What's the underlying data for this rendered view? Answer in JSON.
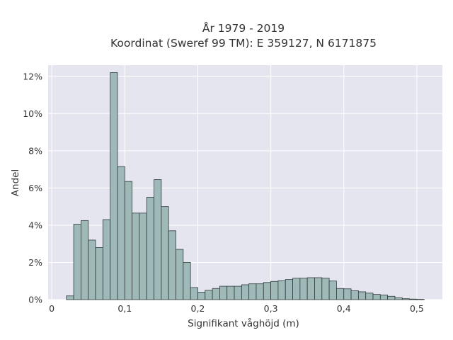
{
  "chart_data": {
    "type": "bar",
    "title_lines": [
      "År 1979 - 2019",
      "Koordinat (Sweref 99 TM): E 359127, N 6171875"
    ],
    "xlabel": "Signifikant våghöjd (m)",
    "ylabel": "Andel",
    "xlim": [
      -0.005,
      0.535
    ],
    "ylim": [
      0,
      12.6
    ],
    "xticks": [
      0,
      0.1,
      0.2,
      0.3,
      0.4,
      0.5
    ],
    "xtick_labels": [
      "0",
      "0,1",
      "0,2",
      "0,3",
      "0,4",
      "0,5"
    ],
    "yticks": [
      0,
      2,
      4,
      6,
      8,
      10,
      12
    ],
    "ytick_labels": [
      "0%",
      "2%",
      "4%",
      "6%",
      "8%",
      "10%",
      "12%"
    ],
    "grid": true,
    "bin_width": 0.01,
    "bin_starts": [
      0.02,
      0.03,
      0.04,
      0.05,
      0.06,
      0.07,
      0.08,
      0.09,
      0.1,
      0.11,
      0.12,
      0.13,
      0.14,
      0.15,
      0.16,
      0.17,
      0.18,
      0.19,
      0.2,
      0.21,
      0.22,
      0.23,
      0.24,
      0.25,
      0.26,
      0.27,
      0.28,
      0.29,
      0.3,
      0.31,
      0.32,
      0.33,
      0.34,
      0.35,
      0.36,
      0.37,
      0.38,
      0.39,
      0.4,
      0.41,
      0.42,
      0.43,
      0.44,
      0.45,
      0.46,
      0.47,
      0.48,
      0.49,
      0.5
    ],
    "values": [
      0.2,
      4.05,
      4.25,
      3.2,
      2.8,
      4.3,
      12.2,
      7.15,
      6.35,
      4.65,
      4.65,
      5.5,
      6.45,
      5.0,
      3.7,
      2.7,
      2.0,
      0.65,
      0.4,
      0.5,
      0.6,
      0.72,
      0.72,
      0.72,
      0.8,
      0.85,
      0.85,
      0.92,
      0.98,
      1.02,
      1.08,
      1.15,
      1.15,
      1.18,
      1.18,
      1.15,
      1.0,
      0.6,
      0.58,
      0.48,
      0.42,
      0.35,
      0.28,
      0.25,
      0.18,
      0.1,
      0.05,
      0.03,
      0.02
    ],
    "bar_color": "#9fb8b8",
    "bar_edge_color": "#2e3b3b",
    "plot_bg": "#e5e5ef",
    "grid_color": "#ffffff"
  }
}
